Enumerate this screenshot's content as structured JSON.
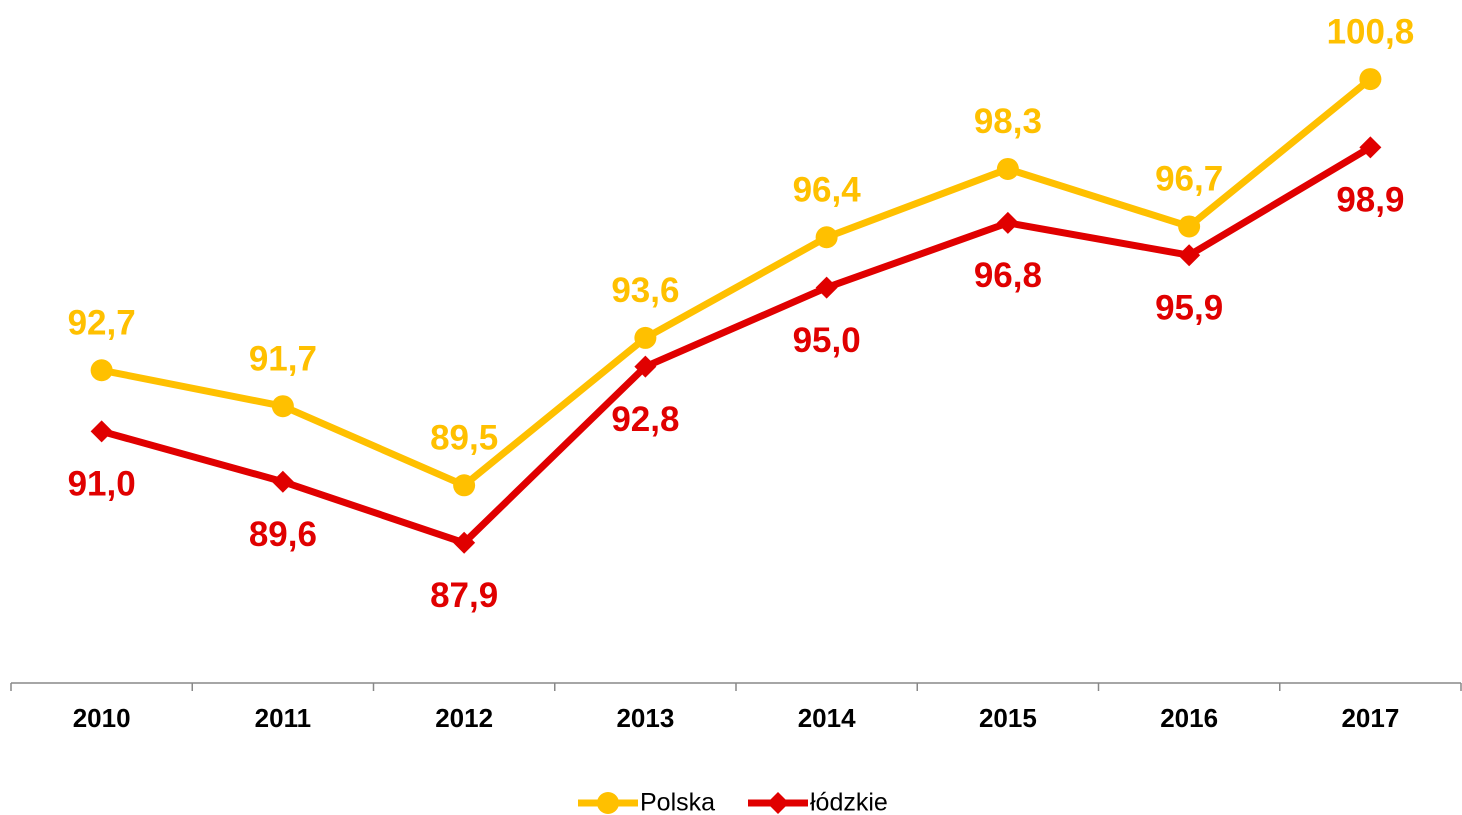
{
  "chart_data": {
    "type": "line",
    "categories": [
      "2010",
      "2011",
      "2012",
      "2013",
      "2014",
      "2015",
      "2016",
      "2017"
    ],
    "series": [
      {
        "name": "Polska",
        "color": "#ffc000",
        "marker": "circle",
        "values": [
          92.7,
          91.7,
          89.5,
          93.6,
          96.4,
          98.3,
          96.7,
          100.8
        ],
        "value_labels": [
          "92,7",
          "91,7",
          "89,5",
          "93,6",
          "96,4",
          "98,3",
          "96,7",
          "100,8"
        ]
      },
      {
        "name": "łódzkie",
        "color": "#e00000",
        "marker": "diamond",
        "values": [
          91.0,
          89.6,
          87.9,
          92.8,
          95.0,
          96.8,
          95.9,
          98.9
        ],
        "value_labels": [
          "91,0",
          "89,6",
          "87,9",
          "92,8",
          "95,0",
          "96,8",
          "95,9",
          "98,9"
        ]
      }
    ],
    "ylim": [
      84,
      103
    ],
    "legend": "bottom"
  }
}
